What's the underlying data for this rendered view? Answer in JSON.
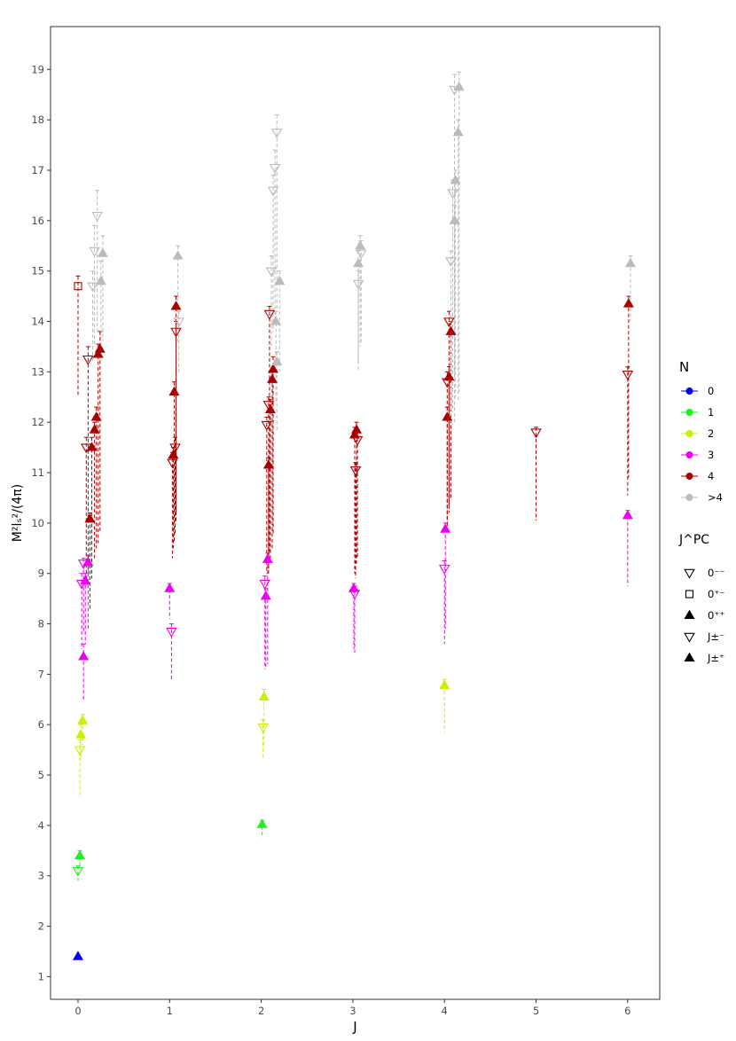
{
  "chart_data": {
    "type": "scatter",
    "xlabel": "J",
    "ylabel": "M²lₛ²/(4π)",
    "xlim": [
      -0.3,
      6.35
    ],
    "ylim": [
      0.55,
      19.85
    ],
    "x_ticks": [
      0,
      1,
      2,
      3,
      4,
      5,
      6
    ],
    "y_ticks": [
      1,
      2,
      3,
      4,
      5,
      6,
      7,
      8,
      9,
      10,
      11,
      12,
      13,
      14,
      15,
      16,
      17,
      18,
      19
    ],
    "grid": false,
    "legend_position": "right",
    "legend": {
      "n_title": "N",
      "n_items": [
        {
          "label": "0",
          "color": "#0000ee"
        },
        {
          "label": "1",
          "color": "#22ee22"
        },
        {
          "label": "2",
          "color": "#ccee00"
        },
        {
          "label": "3",
          "color": "#ee00ee"
        },
        {
          "label": "4",
          "color": "#aa0000"
        },
        {
          "label": ">4",
          "color": "#bbbbbb"
        }
      ],
      "jpc_title": "J^PC",
      "jpc_items": [
        {
          "label": "0⁻⁻",
          "marker": "tri-down-open"
        },
        {
          "label": "0⁺⁻",
          "marker": "square-open"
        },
        {
          "label": "0⁺⁺",
          "marker": "tri-up-filled"
        },
        {
          "label": "J±⁻",
          "marker": "tri-down-open"
        },
        {
          "label": "J±⁺",
          "marker": "tri-up-filled"
        }
      ]
    },
    "points": [
      {
        "x": 0.0,
        "y": 1.4,
        "n": "0",
        "m": "up",
        "lo": 1.4,
        "hi": 1.4
      },
      {
        "x": 0.02,
        "y": 3.4,
        "n": "1",
        "m": "up",
        "lo": 3.2,
        "hi": 3.5
      },
      {
        "x": 0.0,
        "y": 3.1,
        "n": "1",
        "m": "down",
        "lo": 2.9,
        "hi": 3.2
      },
      {
        "x": 0.03,
        "y": 5.8,
        "n": "2",
        "m": "up",
        "lo": 5.3,
        "hi": 6.0
      },
      {
        "x": 0.02,
        "y": 5.5,
        "n": "2",
        "m": "down",
        "lo": 4.6,
        "hi": 5.7
      },
      {
        "x": 0.05,
        "y": 6.08,
        "n": "2",
        "m": "up",
        "lo": 5.6,
        "hi": 6.2
      },
      {
        "x": 0.06,
        "y": 7.35,
        "n": "3",
        "m": "up",
        "lo": 6.5,
        "hi": 7.6
      },
      {
        "x": 0.04,
        "y": 8.8,
        "n": "3",
        "m": "down",
        "lo": 7.5,
        "hi": 9.0
      },
      {
        "x": 0.06,
        "y": 9.2,
        "n": "3",
        "m": "down",
        "lo": 7.8,
        "hi": 9.3
      },
      {
        "x": 0.08,
        "y": 8.85,
        "n": "3",
        "m": "up",
        "lo": 7.6,
        "hi": 9.0
      },
      {
        "x": 0.11,
        "y": 9.22,
        "n": "3",
        "m": "up",
        "lo": 7.9,
        "hi": 9.35
      },
      {
        "x": 0.0,
        "y": 14.7,
        "n": "4",
        "m": "square",
        "lo": 12.5,
        "hi": 14.9
      },
      {
        "x": 0.09,
        "y": 11.5,
        "n": "4",
        "m": "down",
        "lo": 8.9,
        "hi": 11.7
      },
      {
        "x": 0.11,
        "y": 13.25,
        "n": "4",
        "m": "down",
        "lo": 9.0,
        "hi": 13.5
      },
      {
        "x": 0.13,
        "y": 10.08,
        "n": "4",
        "m": "up",
        "lo": 8.3,
        "hi": 10.2
      },
      {
        "x": 0.15,
        "y": 11.5,
        "n": "4",
        "m": "up",
        "lo": 8.9,
        "hi": 11.7
      },
      {
        "x": 0.18,
        "y": 11.85,
        "n": "4",
        "m": "up",
        "lo": 9.3,
        "hi": 12.0
      },
      {
        "x": 0.2,
        "y": 12.1,
        "n": "4",
        "m": "up",
        "lo": 9.5,
        "hi": 12.3
      },
      {
        "x": 0.22,
        "y": 13.35,
        "n": "4",
        "m": "up",
        "lo": 9.6,
        "hi": 13.55
      },
      {
        "x": 0.24,
        "y": 13.45,
        "n": "4",
        "m": "up",
        "lo": 9.8,
        "hi": 13.8
      },
      {
        "x": 0.16,
        "y": 14.7,
        "n": ">4",
        "m": "down",
        "lo": 13.2,
        "hi": 15.0
      },
      {
        "x": 0.18,
        "y": 15.4,
        "n": ">4",
        "m": "down",
        "lo": 13.5,
        "hi": 15.9
      },
      {
        "x": 0.21,
        "y": 16.1,
        "n": ">4",
        "m": "down",
        "lo": 13.8,
        "hi": 16.6
      },
      {
        "x": 0.25,
        "y": 14.8,
        "n": ">4",
        "m": "up",
        "lo": 13.3,
        "hi": 15.2
      },
      {
        "x": 0.27,
        "y": 15.35,
        "n": ">4",
        "m": "up",
        "lo": 13.6,
        "hi": 15.7
      },
      {
        "x": 1.0,
        "y": 8.7,
        "n": "3",
        "m": "up",
        "lo": 8.1,
        "hi": 8.8
      },
      {
        "x": 1.02,
        "y": 7.85,
        "n": "3",
        "m": "down",
        "lo": 6.9,
        "hi": 8.0
      },
      {
        "x": 1.03,
        "y": 11.2,
        "n": "4",
        "m": "down",
        "lo": 9.3,
        "hi": 11.4
      },
      {
        "x": 1.04,
        "y": 11.35,
        "n": "4",
        "m": "up",
        "lo": 9.5,
        "hi": 11.5
      },
      {
        "x": 1.05,
        "y": 12.6,
        "n": "4",
        "m": "up",
        "lo": 9.6,
        "hi": 12.8
      },
      {
        "x": 1.06,
        "y": 11.5,
        "n": "4",
        "m": "down",
        "lo": 9.8,
        "hi": 11.7
      },
      {
        "x": 1.07,
        "y": 13.8,
        "n": "4",
        "m": "down",
        "lo": 10.0,
        "hi": 14.0
      },
      {
        "x": 1.07,
        "y": 14.3,
        "n": "4",
        "m": "up",
        "lo": 10.2,
        "hi": 14.5
      },
      {
        "x": 1.09,
        "y": 15.3,
        "n": ">4",
        "m": "up",
        "lo": 13.6,
        "hi": 15.5
      },
      {
        "x": 1.1,
        "y": 14.0,
        "n": ">4",
        "m": "down",
        "lo": 13.0,
        "hi": 14.2
      },
      {
        "x": 2.01,
        "y": 4.02,
        "n": "1",
        "m": "up",
        "lo": 3.75,
        "hi": 4.1
      },
      {
        "x": 2.02,
        "y": 5.95,
        "n": "2",
        "m": "down",
        "lo": 5.3,
        "hi": 6.1
      },
      {
        "x": 2.03,
        "y": 6.55,
        "n": "2",
        "m": "up",
        "lo": 5.6,
        "hi": 6.7
      },
      {
        "x": 2.04,
        "y": 8.8,
        "n": "3",
        "m": "down",
        "lo": 7.1,
        "hi": 8.95
      },
      {
        "x": 2.05,
        "y": 8.55,
        "n": "3",
        "m": "up",
        "lo": 7.1,
        "hi": 8.7
      },
      {
        "x": 2.07,
        "y": 9.28,
        "n": "3",
        "m": "up",
        "lo": 7.2,
        "hi": 9.4
      },
      {
        "x": 2.06,
        "y": 11.95,
        "n": "4",
        "m": "down",
        "lo": 9.0,
        "hi": 12.1
      },
      {
        "x": 2.08,
        "y": 12.35,
        "n": "4",
        "m": "down",
        "lo": 9.0,
        "hi": 12.5
      },
      {
        "x": 2.08,
        "y": 11.15,
        "n": "4",
        "m": "up",
        "lo": 9.1,
        "hi": 11.3
      },
      {
        "x": 2.1,
        "y": 12.25,
        "n": "4",
        "m": "up",
        "lo": 9.3,
        "hi": 12.45
      },
      {
        "x": 2.09,
        "y": 14.15,
        "n": "4",
        "m": "down",
        "lo": 9.4,
        "hi": 14.3
      },
      {
        "x": 2.12,
        "y": 12.85,
        "n": "4",
        "m": "up",
        "lo": 9.5,
        "hi": 13.0
      },
      {
        "x": 2.13,
        "y": 13.05,
        "n": "4",
        "m": "up",
        "lo": 9.8,
        "hi": 13.3
      },
      {
        "x": 2.11,
        "y": 15.0,
        "n": ">4",
        "m": "down",
        "lo": 13.5,
        "hi": 15.3
      },
      {
        "x": 2.13,
        "y": 16.6,
        "n": ">4",
        "m": "down",
        "lo": 13.8,
        "hi": 16.9
      },
      {
        "x": 2.15,
        "y": 17.05,
        "n": ">4",
        "m": "down",
        "lo": 14.0,
        "hi": 17.4
      },
      {
        "x": 2.17,
        "y": 17.75,
        "n": ">4",
        "m": "down",
        "lo": 14.2,
        "hi": 18.1
      },
      {
        "x": 2.16,
        "y": 14.0,
        "n": ">4",
        "m": "up",
        "lo": 12.4,
        "hi": 14.2
      },
      {
        "x": 2.17,
        "y": 13.2,
        "n": ">4",
        "m": "up",
        "lo": 11.8,
        "hi": 13.4
      },
      {
        "x": 2.2,
        "y": 14.8,
        "n": ">4",
        "m": "up",
        "lo": 13.0,
        "hi": 15.0
      },
      {
        "x": 3.01,
        "y": 8.7,
        "n": "3",
        "m": "up",
        "lo": 7.5,
        "hi": 8.8
      },
      {
        "x": 3.02,
        "y": 8.6,
        "n": "3",
        "m": "down",
        "lo": 7.4,
        "hi": 8.75
      },
      {
        "x": 3.02,
        "y": 11.75,
        "n": "4",
        "m": "up",
        "lo": 9.0,
        "hi": 11.9
      },
      {
        "x": 3.03,
        "y": 11.05,
        "n": "4",
        "m": "down",
        "lo": 8.9,
        "hi": 11.2
      },
      {
        "x": 3.04,
        "y": 11.85,
        "n": "4",
        "m": "up",
        "lo": 9.2,
        "hi": 12.0
      },
      {
        "x": 3.05,
        "y": 11.65,
        "n": "4",
        "m": "down",
        "lo": 9.3,
        "hi": 11.8
      },
      {
        "x": 3.06,
        "y": 15.15,
        "n": ">4",
        "m": "up",
        "lo": 13.0,
        "hi": 15.4
      },
      {
        "x": 3.06,
        "y": 14.75,
        "n": ">4",
        "m": "down",
        "lo": 13.2,
        "hi": 15.0
      },
      {
        "x": 3.08,
        "y": 15.5,
        "n": ">4",
        "m": "up",
        "lo": 13.5,
        "hi": 15.7
      },
      {
        "x": 3.09,
        "y": 15.35,
        "n": ">4",
        "m": "down",
        "lo": 13.6,
        "hi": 15.6
      },
      {
        "x": 4.0,
        "y": 6.78,
        "n": "2",
        "m": "up",
        "lo": 5.85,
        "hi": 6.9
      },
      {
        "x": 4.0,
        "y": 9.1,
        "n": "3",
        "m": "down",
        "lo": 7.6,
        "hi": 9.25
      },
      {
        "x": 4.01,
        "y": 9.88,
        "n": "3",
        "m": "up",
        "lo": 7.9,
        "hi": 10.0
      },
      {
        "x": 4.03,
        "y": 12.1,
        "n": "4",
        "m": "up",
        "lo": 9.8,
        "hi": 12.3
      },
      {
        "x": 4.03,
        "y": 12.8,
        "n": "4",
        "m": "down",
        "lo": 10.0,
        "hi": 13.0
      },
      {
        "x": 4.05,
        "y": 12.9,
        "n": "4",
        "m": "up",
        "lo": 10.2,
        "hi": 13.1
      },
      {
        "x": 4.05,
        "y": 14.0,
        "n": "4",
        "m": "down",
        "lo": 10.3,
        "hi": 14.2
      },
      {
        "x": 4.07,
        "y": 13.8,
        "n": "4",
        "m": "up",
        "lo": 10.5,
        "hi": 14.0
      },
      {
        "x": 4.07,
        "y": 15.2,
        "n": ">4",
        "m": "down",
        "lo": 12.0,
        "hi": 15.4
      },
      {
        "x": 4.09,
        "y": 16.55,
        "n": ">4",
        "m": "down",
        "lo": 12.2,
        "hi": 16.8
      },
      {
        "x": 4.11,
        "y": 16.0,
        "n": ">4",
        "m": "up",
        "lo": 12.0,
        "hi": 16.3
      },
      {
        "x": 4.12,
        "y": 16.8,
        "n": ">4",
        "m": "up",
        "lo": 12.5,
        "hi": 17.0
      },
      {
        "x": 4.11,
        "y": 18.6,
        "n": ">4",
        "m": "down",
        "lo": 12.8,
        "hi": 18.9
      },
      {
        "x": 4.15,
        "y": 17.75,
        "n": ">4",
        "m": "up",
        "lo": 12.4,
        "hi": 18.0
      },
      {
        "x": 4.16,
        "y": 18.65,
        "n": ">4",
        "m": "up",
        "lo": 12.6,
        "hi": 18.95
      },
      {
        "x": 5.0,
        "y": 11.8,
        "n": "4",
        "m": "down",
        "lo": 10.05,
        "hi": 11.9
      },
      {
        "x": 6.0,
        "y": 10.15,
        "n": "3",
        "m": "up",
        "lo": 8.75,
        "hi": 10.25
      },
      {
        "x": 6.0,
        "y": 12.95,
        "n": "4",
        "m": "down",
        "lo": 10.55,
        "hi": 13.1
      },
      {
        "x": 6.01,
        "y": 14.35,
        "n": "4",
        "m": "up",
        "lo": 10.9,
        "hi": 14.5
      },
      {
        "x": 6.03,
        "y": 15.15,
        "n": ">4",
        "m": "up",
        "lo": 14.0,
        "hi": 15.3
      }
    ]
  }
}
